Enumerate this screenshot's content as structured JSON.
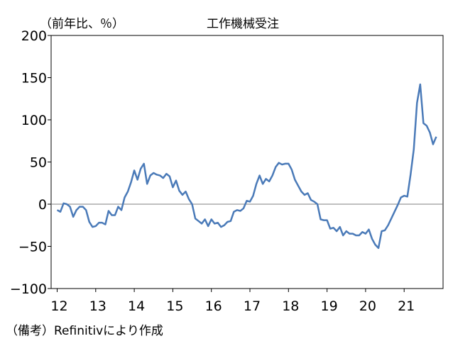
{
  "chart_data": {
    "type": "line",
    "title": "工作機械受注",
    "ylabel": "（前年比、％）",
    "xlabel": "",
    "ylim": [
      -100,
      200
    ],
    "yticks": [
      200,
      150,
      100,
      50,
      0,
      -50,
      -100
    ],
    "ytick_labels": [
      "200",
      "150",
      "100",
      "50",
      "0",
      "−50",
      "−100"
    ],
    "x_start": "2012-01",
    "x_tick_labels": [
      "12",
      "13",
      "14",
      "15",
      "16",
      "17",
      "18",
      "19",
      "20",
      "21"
    ],
    "zero_line": true,
    "grid": false,
    "series": [
      {
        "name": "",
        "color": "#4a7ab8",
        "values": [
          -7,
          -9,
          1,
          0,
          -3,
          -15,
          -7,
          -3,
          -3,
          -7,
          -21,
          -27,
          -26,
          -22,
          -22,
          -24,
          -8,
          -13,
          -13,
          -3,
          -7,
          8,
          15,
          26,
          40,
          29,
          42,
          48,
          24,
          34,
          37,
          35,
          34,
          31,
          36,
          33,
          20,
          28,
          16,
          11,
          15,
          6,
          0,
          -17,
          -20,
          -23,
          -18,
          -26,
          -18,
          -23,
          -22,
          -27,
          -25,
          -21,
          -20,
          -9,
          -7,
          -8,
          -5,
          4,
          3,
          10,
          24,
          34,
          24,
          30,
          27,
          34,
          44,
          49,
          47,
          48,
          48,
          41,
          29,
          22,
          15,
          11,
          13,
          5,
          3,
          0,
          -18,
          -19,
          -19,
          -29,
          -28,
          -32,
          -27,
          -37,
          -32,
          -35,
          -35,
          -37,
          -37,
          -33,
          -35,
          -30,
          -41,
          -48,
          -52,
          -32,
          -31,
          -25,
          -17,
          -9,
          -1,
          8,
          10,
          9,
          35,
          65,
          120,
          142,
          96,
          93,
          85,
          71,
          80
        ]
      }
    ]
  },
  "footer": {
    "note": "（備考）Refinitivにより作成"
  }
}
